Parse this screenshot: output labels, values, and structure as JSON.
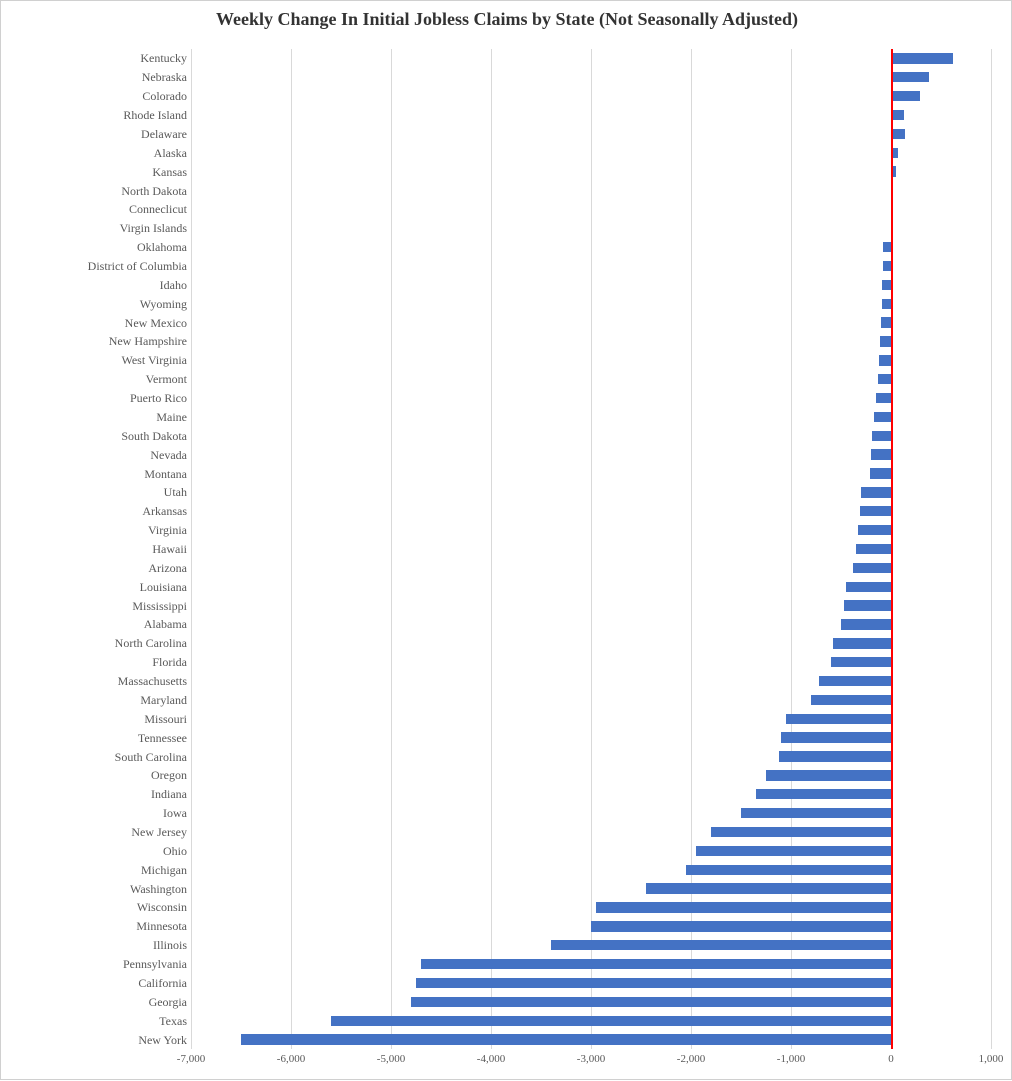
{
  "chart": {
    "type": "bar-horizontal",
    "title": "Weekly Change In Initial Jobless Claims by State (Not Seasonally Adjusted)",
    "title_fontsize": 18,
    "title_color": "#333333",
    "background_color": "#ffffff",
    "grid_color": "#d9d9d9",
    "zero_line_color": "#ff0000",
    "bar_color": "#4472c4",
    "label_color": "#595959",
    "y_label_fontsize": 12,
    "x_label_fontsize": 11,
    "xlim": [
      -7000,
      1000
    ],
    "xtick_step": 1000,
    "xticks": [
      "-7,000",
      "-6,000",
      "-5,000",
      "-4,000",
      "-3,000",
      "-2,000",
      "-1,000",
      "0",
      "1,000"
    ],
    "bar_height_ratio": 0.55,
    "states": [
      {
        "label": "Kentucky",
        "value": 620
      },
      {
        "label": "Nebraska",
        "value": 380
      },
      {
        "label": "Colorado",
        "value": 290
      },
      {
        "label": "Rhode Island",
        "value": 130
      },
      {
        "label": "Delaware",
        "value": 140
      },
      {
        "label": "Alaska",
        "value": 70
      },
      {
        "label": "Kansas",
        "value": 50
      },
      {
        "label": "North Dakota",
        "value": 10
      },
      {
        "label": "Conneclicut",
        "value": 5
      },
      {
        "label": "Virgin Islands",
        "value": 5
      },
      {
        "label": "Oklahoma",
        "value": -80
      },
      {
        "label": "District of Columbia",
        "value": -80
      },
      {
        "label": "Idaho",
        "value": -90
      },
      {
        "label": "Wyoming",
        "value": -90
      },
      {
        "label": "New Mexico",
        "value": -100
      },
      {
        "label": "New Hampshire",
        "value": -110
      },
      {
        "label": "West Virginia",
        "value": -120
      },
      {
        "label": "Vermont",
        "value": -130
      },
      {
        "label": "Puerto Rico",
        "value": -150
      },
      {
        "label": "Maine",
        "value": -170
      },
      {
        "label": "South Dakota",
        "value": -190
      },
      {
        "label": "Nevada",
        "value": -200
      },
      {
        "label": "Montana",
        "value": -210
      },
      {
        "label": "Utah",
        "value": -300
      },
      {
        "label": "Arkansas",
        "value": -310
      },
      {
        "label": "Virginia",
        "value": -330
      },
      {
        "label": "Hawaii",
        "value": -350
      },
      {
        "label": "Arizona",
        "value": -380
      },
      {
        "label": "Louisiana",
        "value": -450
      },
      {
        "label": "Mississippi",
        "value": -470
      },
      {
        "label": "Alabama",
        "value": -500
      },
      {
        "label": "North Carolina",
        "value": -580
      },
      {
        "label": "Florida",
        "value": -600
      },
      {
        "label": "Massachusetts",
        "value": -720
      },
      {
        "label": "Maryland",
        "value": -800
      },
      {
        "label": "Missouri",
        "value": -1050
      },
      {
        "label": "Tennessee",
        "value": -1100
      },
      {
        "label": "South Carolina",
        "value": -1120
      },
      {
        "label": "Oregon",
        "value": -1250
      },
      {
        "label": "Indiana",
        "value": -1350
      },
      {
        "label": "Iowa",
        "value": -1500
      },
      {
        "label": "New Jersey",
        "value": -1800
      },
      {
        "label": "Ohio",
        "value": -1950
      },
      {
        "label": "Michigan",
        "value": -2050
      },
      {
        "label": "Washington",
        "value": -2450
      },
      {
        "label": "Wisconsin",
        "value": -2950
      },
      {
        "label": "Minnesota",
        "value": -3000
      },
      {
        "label": "Illinois",
        "value": -3400
      },
      {
        "label": "Pennsylvania",
        "value": -4700
      },
      {
        "label": "California",
        "value": -4750
      },
      {
        "label": "Georgia",
        "value": -4800
      },
      {
        "label": "Texas",
        "value": -5600
      },
      {
        "label": "New York",
        "value": -6500
      }
    ]
  }
}
